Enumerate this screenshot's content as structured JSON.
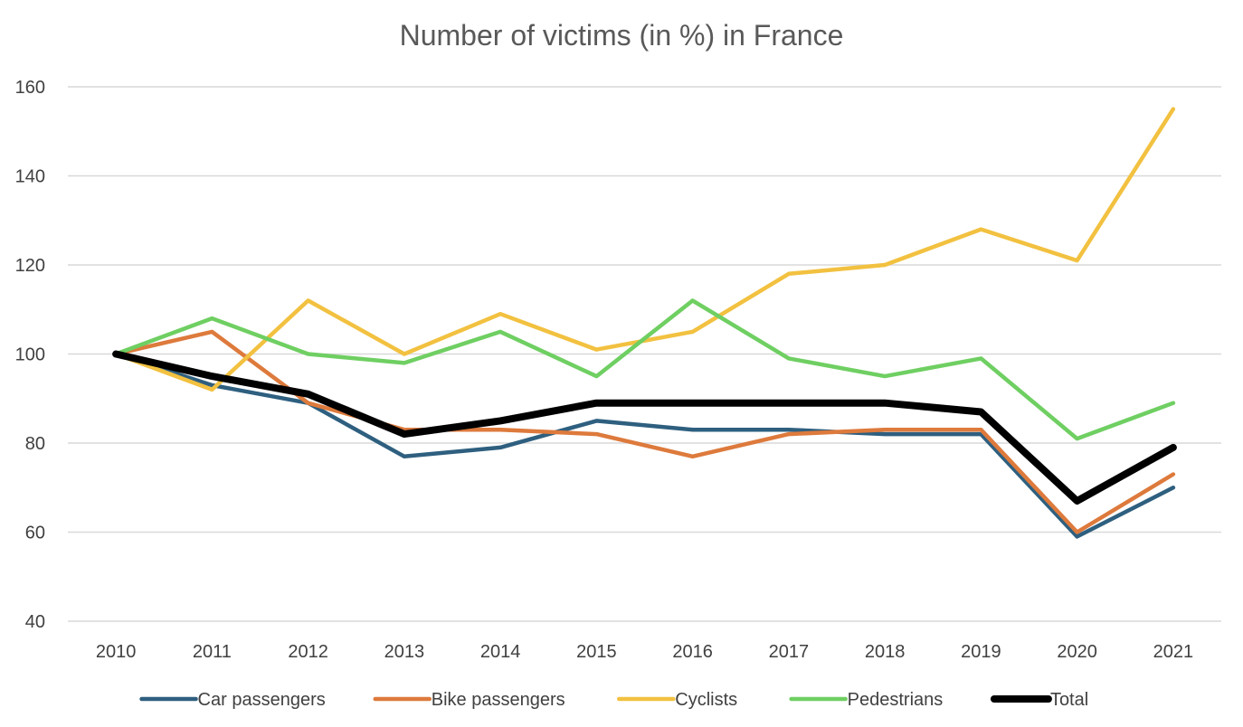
{
  "chart_data": {
    "type": "line",
    "title": "Number of victims (in %) in France",
    "xlabel": "",
    "ylabel": "",
    "x": [
      "2010",
      "2011",
      "2012",
      "2013",
      "2014",
      "2015",
      "2016",
      "2017",
      "2018",
      "2019",
      "2020",
      "2021"
    ],
    "ylim": [
      40,
      160
    ],
    "yticks": [
      40,
      60,
      80,
      100,
      120,
      140,
      160
    ],
    "grid": true,
    "legend_position": "bottom",
    "series": [
      {
        "name": "Car passengers",
        "color": "#2e5f7f",
        "values": [
          100,
          93,
          89,
          77,
          79,
          85,
          83,
          83,
          82,
          82,
          59,
          70
        ]
      },
      {
        "name": "Bike passengers",
        "color": "#dd7a3c",
        "values": [
          100,
          105,
          89,
          83,
          83,
          82,
          77,
          82,
          83,
          83,
          60,
          73
        ]
      },
      {
        "name": "Cyclists",
        "color": "#f2c140",
        "values": [
          100,
          92,
          112,
          100,
          109,
          101,
          105,
          118,
          120,
          128,
          121,
          155
        ]
      },
      {
        "name": "Pedestrians",
        "color": "#6fcf62",
        "values": [
          100,
          108,
          100,
          98,
          105,
          95,
          112,
          99,
          95,
          99,
          81,
          89
        ]
      },
      {
        "name": "Total",
        "color": "#000000",
        "values": [
          100,
          95,
          91,
          82,
          85,
          89,
          89,
          89,
          89,
          87,
          67,
          79
        ]
      }
    ]
  }
}
